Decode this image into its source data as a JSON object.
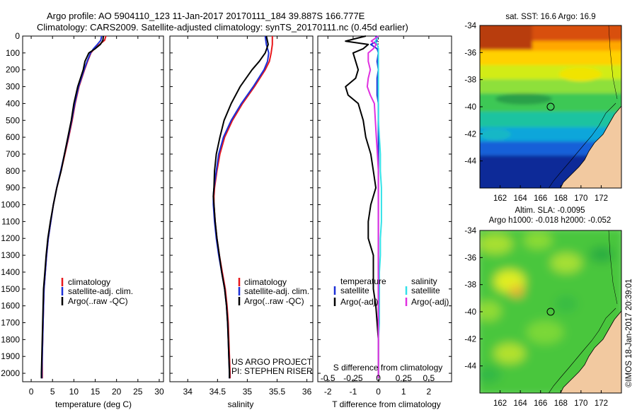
{
  "header": {
    "line1": "Argo profile: AO 5904110_123 11-Jan-2017 20170111_184 39.887S 166.777E",
    "line2": "Climatology: CARS2009. Satellite-adjusted climatology: synTS_20170111.nc (0.45d earlier)"
  },
  "colors": {
    "climatology": "#e8171b",
    "satellite_adj": "#1c2fd6",
    "argo": "#000000",
    "t_satellite": "#1c2fd6",
    "s_satellite": "#33e0e8",
    "s_argo": "#e030e0",
    "land": "#f2c9a0"
  },
  "credit": {
    "project": "US ARGO PROJECT",
    "pi": "PI: STEPHEN RISER",
    "stamp": "©IMOS 18-Jan-2017 20:39:01"
  },
  "maps": {
    "sst_title": "sat. SST: 16.6  Argo: 16.9",
    "sla_title1": "Altim. SLA: -0.0095",
    "sla_title2": "Argo h1000: -0.018 h2000: -0.052",
    "xticks": [
      "162",
      "164",
      "166",
      "168",
      "170",
      "172"
    ],
    "yticks": [
      "-34",
      "-36",
      "-38",
      "-40",
      "-42",
      "-44"
    ]
  },
  "chart_data": [
    {
      "type": "line",
      "name": "temperature",
      "xlabel": "temperature (deg C)",
      "ylabel": "",
      "xlim": [
        -2,
        31
      ],
      "ylim": [
        2050,
        0
      ],
      "xticks": [
        "0",
        "5",
        "10",
        "15",
        "20",
        "25",
        "30"
      ],
      "yticks": [
        "0",
        "100",
        "200",
        "300",
        "400",
        "500",
        "600",
        "700",
        "800",
        "900",
        "1000",
        "1100",
        "1200",
        "1300",
        "1400",
        "1500",
        "1600",
        "1700",
        "1800",
        "1900",
        "2000"
      ],
      "legend": [
        "climatology",
        "satellite-adj. clim.",
        "Argo(..raw -QC)"
      ],
      "legend_position": "lower-right",
      "depth": [
        0,
        25,
        50,
        75,
        100,
        150,
        200,
        300,
        400,
        500,
        600,
        700,
        800,
        900,
        1000,
        1100,
        1200,
        1300,
        1400,
        1500,
        1600,
        1700,
        1800,
        1900,
        2000,
        2030
      ],
      "series": [
        {
          "name": "climatology",
          "values": [
            17.5,
            17.2,
            16.0,
            14.8,
            14.0,
            13.2,
            12.5,
            11.2,
            10.3,
            9.6,
            8.8,
            7.9,
            7.0,
            6.0,
            5.2,
            4.6,
            4.0,
            3.6,
            3.3,
            3.0,
            2.9,
            2.8,
            2.7,
            2.6,
            2.6,
            2.6
          ]
        },
        {
          "name": "satellite-adj. clim.",
          "values": [
            16.5,
            16.3,
            15.5,
            14.6,
            13.9,
            13.1,
            12.4,
            11.1,
            10.2,
            9.5,
            8.7,
            7.8,
            6.9,
            6.0,
            5.2,
            4.6,
            4.0,
            3.6,
            3.3,
            3.0,
            2.9,
            2.8,
            2.7,
            2.6,
            2.5,
            2.5
          ]
        },
        {
          "name": "Argo(..raw -QC)",
          "values": [
            16.9,
            16.8,
            16.2,
            15.0,
            13.5,
            12.6,
            12.2,
            10.9,
            10.0,
            9.4,
            8.6,
            7.8,
            7.0,
            6.0,
            5.2,
            4.5,
            3.9,
            3.5,
            3.2,
            2.9,
            2.8,
            2.7,
            2.6,
            2.5,
            2.4,
            2.4
          ]
        }
      ]
    },
    {
      "type": "line",
      "name": "salinity",
      "xlabel": "salinity",
      "xlim": [
        33.7,
        36.1
      ],
      "ylim": [
        2050,
        0
      ],
      "xticks": [
        "34",
        "34.5",
        "35",
        "35.5",
        "36"
      ],
      "legend": [
        "climatology",
        "satellite-adj. clim.",
        "Argo(..raw -QC)"
      ],
      "legend_position": "lower-right",
      "depth": [
        0,
        50,
        100,
        150,
        200,
        300,
        400,
        500,
        600,
        700,
        800,
        900,
        950,
        1000,
        1100,
        1200,
        1300,
        1400,
        1500,
        1600,
        1700,
        1800,
        1900,
        2000,
        2030
      ],
      "series": [
        {
          "name": "climatology",
          "values": [
            35.42,
            35.42,
            35.4,
            35.37,
            35.3,
            35.12,
            34.92,
            34.75,
            34.62,
            34.54,
            34.49,
            34.45,
            34.44,
            34.44,
            34.46,
            34.49,
            34.53,
            34.58,
            34.63,
            34.66,
            34.68,
            34.69,
            34.7,
            34.71,
            34.71
          ]
        },
        {
          "name": "satellite-adj. clim.",
          "values": [
            35.3,
            35.32,
            35.36,
            35.34,
            35.28,
            35.1,
            34.9,
            34.73,
            34.6,
            34.52,
            34.48,
            34.44,
            34.43,
            34.43,
            34.45,
            34.48,
            34.52,
            34.57,
            34.62,
            34.65,
            34.67,
            34.68,
            34.69,
            34.7,
            34.7
          ]
        },
        {
          "name": "Argo(..raw -QC)",
          "values": [
            35.32,
            35.35,
            35.3,
            35.2,
            35.08,
            34.88,
            34.73,
            34.61,
            34.54,
            34.48,
            34.45,
            34.44,
            34.43,
            34.44,
            34.46,
            34.49,
            34.53,
            34.57,
            34.62,
            34.65,
            34.67,
            34.68,
            34.69,
            34.7,
            34.7
          ]
        }
      ]
    },
    {
      "type": "line",
      "name": "difference",
      "xlabel": "T difference from climatology",
      "x2label": "S difference from climatology",
      "xlim": [
        -2.4,
        2.9
      ],
      "x2lim": [
        -0.6,
        0.725
      ],
      "ylim": [
        2050,
        0
      ],
      "xticks": [
        "-2",
        "-1",
        "0",
        "1",
        "2"
      ],
      "x2ticks": [
        "-0.5",
        "-0.25",
        "0",
        "0.25",
        "0.5"
      ],
      "legend": {
        "temperature": "temperature",
        "salinity": "salinity",
        "t_sat": "satellite",
        "t_argo": "Argo(-adj)",
        "s_sat": "satellite",
        "s_argo": "Argo(-adj)"
      },
      "depth": [
        0,
        30,
        50,
        75,
        100,
        150,
        200,
        250,
        300,
        350,
        400,
        500,
        600,
        700,
        800,
        900,
        1000,
        1100,
        1200,
        1300,
        1400,
        1500,
        1600,
        1700,
        1800,
        1900,
        2000,
        2030
      ],
      "series": [
        {
          "name": "T satellite",
          "values": [
            -0.1,
            -0.05,
            -0.3,
            -0.05,
            0.0,
            -0.05,
            0.0,
            -0.05,
            -0.05,
            -0.05,
            0.0,
            0.0,
            0.0,
            0.0,
            0.0,
            0.0,
            0.0,
            0.0,
            0.0,
            0.0,
            0.0,
            0.0,
            0.0,
            0.0,
            0.0,
            0.0,
            0.0,
            0.0
          ]
        },
        {
          "name": "T Argo(-adj)",
          "values": [
            -0.5,
            -1.3,
            -0.4,
            -0.6,
            -1.0,
            -0.9,
            -0.8,
            -0.9,
            -1.3,
            -1.2,
            -0.8,
            -0.6,
            -0.5,
            -0.3,
            -0.2,
            -0.1,
            -0.3,
            -0.4,
            -0.4,
            -0.2,
            -0.2,
            -0.2,
            -0.1,
            -0.05,
            0.0,
            0.0,
            0.0,
            0.0
          ]
        },
        {
          "name": "S satellite",
          "values": [
            0.0,
            -0.03,
            -0.01,
            0.0,
            0.0,
            0.0,
            0.0,
            0.0,
            0.0,
            0.0,
            0.0,
            0.0,
            0.01,
            0.02,
            0.02,
            0.03,
            0.03,
            0.03,
            0.02,
            0.02,
            0.01,
            0.01,
            0.01,
            0.01,
            0.0,
            0.0,
            0.0,
            0.0
          ]
        },
        {
          "name": "S Argo(-adj)",
          "values": [
            0.0,
            -0.07,
            -0.02,
            -0.05,
            -0.1,
            -0.1,
            -0.08,
            -0.1,
            -0.11,
            -0.08,
            -0.04,
            -0.03,
            -0.02,
            -0.01,
            0.0,
            0.0,
            0.0,
            0.0,
            0.0,
            0.0,
            0.0,
            0.0,
            0.0,
            0.0,
            0.0,
            0.0,
            0.0,
            0.0
          ]
        }
      ]
    }
  ]
}
